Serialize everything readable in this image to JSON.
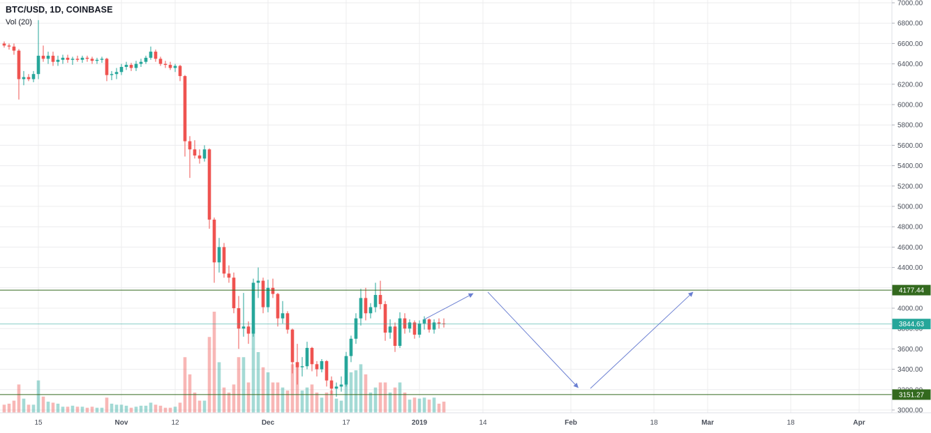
{
  "header": {
    "symbol_title": "BTC/USD, 1D, COINBASE",
    "indicator_label": "Vol (20)"
  },
  "colors": {
    "up": "#26a69a",
    "down": "#ef5350",
    "volume_up": "rgba(38,166,154,0.42)",
    "volume_down": "rgba(239,83,80,0.42)",
    "grid": "#ececee",
    "axis_line": "#dcdfe5",
    "axis_text": "#4a4f5a",
    "axis_tick": "#b0b3bb",
    "level_line": "#33691e",
    "last_price": "#26a69a",
    "arrow": "#6a7fd2",
    "legend_text": "#131722",
    "background": "#ffffff"
  },
  "price_axis": {
    "min": 3000,
    "max": 7000,
    "step": 200,
    "labels": [
      "7000.00",
      "6800.00",
      "6600.00",
      "6400.00",
      "6200.00",
      "6000.00",
      "5800.00",
      "5600.00",
      "5400.00",
      "5200.00",
      "5000.00",
      "4800.00",
      "4600.00",
      "4400.00",
      "4200.00",
      "4000.00",
      "3800.00",
      "3600.00",
      "3400.00",
      "3200.00",
      "3000.00"
    ]
  },
  "time_axis": {
    "labels": [
      {
        "text": "15",
        "day": -78,
        "major": false
      },
      {
        "text": "Nov",
        "day": -61,
        "major": true
      },
      {
        "text": "12",
        "day": -50,
        "major": false
      },
      {
        "text": "Dec",
        "day": -31,
        "major": true
      },
      {
        "text": "17",
        "day": -15,
        "major": false
      },
      {
        "text": "2019",
        "day": 0,
        "major": true
      },
      {
        "text": "14",
        "day": 13,
        "major": false
      },
      {
        "text": "Feb",
        "day": 31,
        "major": true
      },
      {
        "text": "18",
        "day": 48,
        "major": false
      },
      {
        "text": "Mar",
        "day": 59,
        "major": true
      },
      {
        "text": "18",
        "day": 76,
        "major": false
      },
      {
        "text": "Apr",
        "day": 90,
        "major": true
      }
    ]
  },
  "price_lines": {
    "resistance": {
      "label": "4177.44",
      "value": 4177.44
    },
    "support": {
      "label": "3151.27",
      "value": 3151.27
    },
    "last": {
      "label": "3844.63",
      "value": 3844.63
    }
  },
  "drawings": {
    "arrows": [
      {
        "from_day": 1,
        "from_price": 3890,
        "to_day": 11,
        "to_price": 4144
      },
      {
        "from_day": 14,
        "from_price": 4158,
        "to_day": 32.5,
        "to_price": 3219
      },
      {
        "from_day": 35,
        "from_price": 3212,
        "to_day": 56,
        "to_price": 4158
      }
    ]
  },
  "chart_data": {
    "type": "candlestick",
    "symbol": "BTC/USD",
    "interval": "1D",
    "exchange": "COINBASE",
    "price_range": [
      3000,
      7000
    ],
    "levels": [
      4177.44,
      3151.27
    ],
    "last_price": 3844.63,
    "volume_unit": "relative-0-100",
    "candle_fields": [
      "date",
      "open",
      "high",
      "low",
      "close",
      "volume_rel"
    ],
    "candles": [
      [
        "2018-10-08",
        6600,
        6620,
        6560,
        6580,
        8
      ],
      [
        "2018-10-09",
        6580,
        6600,
        6540,
        6570,
        9
      ],
      [
        "2018-10-10",
        6570,
        6600,
        6490,
        6530,
        12
      ],
      [
        "2018-10-11",
        6530,
        6545,
        6050,
        6250,
        28
      ],
      [
        "2018-10-12",
        6250,
        6330,
        6190,
        6270,
        14
      ],
      [
        "2018-10-13",
        6270,
        6300,
        6230,
        6250,
        8
      ],
      [
        "2018-10-14",
        6250,
        6330,
        6220,
        6300,
        8
      ],
      [
        "2018-10-15",
        6300,
        6830,
        6250,
        6480,
        32
      ],
      [
        "2018-10-16",
        6480,
        6580,
        6420,
        6450,
        16
      ],
      [
        "2018-10-17",
        6450,
        6520,
        6400,
        6480,
        11
      ],
      [
        "2018-10-18",
        6480,
        6520,
        6380,
        6420,
        10
      ],
      [
        "2018-10-19",
        6420,
        6480,
        6380,
        6440,
        9
      ],
      [
        "2018-10-20",
        6440,
        6490,
        6400,
        6460,
        6
      ],
      [
        "2018-10-21",
        6460,
        6490,
        6410,
        6440,
        6
      ],
      [
        "2018-10-22",
        6440,
        6470,
        6390,
        6450,
        7
      ],
      [
        "2018-10-23",
        6450,
        6480,
        6420,
        6440,
        6
      ],
      [
        "2018-10-24",
        6440,
        6480,
        6410,
        6460,
        6
      ],
      [
        "2018-10-25",
        6460,
        6480,
        6420,
        6450,
        5
      ],
      [
        "2018-10-26",
        6450,
        6470,
        6400,
        6430,
        6
      ],
      [
        "2018-10-27",
        6430,
        6460,
        6400,
        6440,
        5
      ],
      [
        "2018-10-28",
        6440,
        6470,
        6410,
        6450,
        5
      ],
      [
        "2018-10-29",
        6450,
        6460,
        6230,
        6290,
        15
      ],
      [
        "2018-10-30",
        6290,
        6330,
        6240,
        6300,
        9
      ],
      [
        "2018-10-31",
        6300,
        6360,
        6250,
        6320,
        8
      ],
      [
        "2018-11-01",
        6320,
        6400,
        6290,
        6370,
        8
      ],
      [
        "2018-11-02",
        6370,
        6420,
        6340,
        6390,
        7
      ],
      [
        "2018-11-03",
        6390,
        6410,
        6330,
        6360,
        5
      ],
      [
        "2018-11-04",
        6360,
        6430,
        6330,
        6400,
        6
      ],
      [
        "2018-11-05",
        6400,
        6450,
        6370,
        6420,
        7
      ],
      [
        "2018-11-06",
        6420,
        6480,
        6400,
        6460,
        7
      ],
      [
        "2018-11-07",
        6460,
        6570,
        6440,
        6520,
        10
      ],
      [
        "2018-11-08",
        6520,
        6540,
        6420,
        6450,
        8
      ],
      [
        "2018-11-09",
        6450,
        6470,
        6380,
        6400,
        7
      ],
      [
        "2018-11-10",
        6400,
        6430,
        6360,
        6390,
        5
      ],
      [
        "2018-11-11",
        6390,
        6420,
        6340,
        6360,
        5
      ],
      [
        "2018-11-12",
        6360,
        6400,
        6320,
        6380,
        6
      ],
      [
        "2018-11-13",
        6380,
        6390,
        6230,
        6280,
        10
      ],
      [
        "2018-11-14",
        6280,
        6290,
        5490,
        5640,
        55
      ],
      [
        "2018-11-15",
        5640,
        5690,
        5280,
        5560,
        38
      ],
      [
        "2018-11-16",
        5560,
        5650,
        5470,
        5500,
        20
      ],
      [
        "2018-11-17",
        5500,
        5560,
        5420,
        5470,
        12
      ],
      [
        "2018-11-18",
        5470,
        5600,
        5440,
        5560,
        12
      ],
      [
        "2018-11-19",
        5560,
        5570,
        4780,
        4870,
        75
      ],
      [
        "2018-11-20",
        4870,
        4890,
        4250,
        4450,
        100
      ],
      [
        "2018-11-21",
        4450,
        4690,
        4350,
        4600,
        50
      ],
      [
        "2018-11-22",
        4600,
        4640,
        4300,
        4340,
        25
      ],
      [
        "2018-11-23",
        4340,
        4420,
        4250,
        4300,
        20
      ],
      [
        "2018-11-24",
        4300,
        4350,
        3950,
        4000,
        28
      ],
      [
        "2018-11-25",
        4000,
        4120,
        3600,
        3800,
        55
      ],
      [
        "2018-11-26",
        3800,
        4150,
        3720,
        3820,
        55
      ],
      [
        "2018-11-27",
        3820,
        3870,
        3650,
        3750,
        30
      ],
      [
        "2018-11-28",
        3750,
        4290,
        3720,
        4250,
        85
      ],
      [
        "2018-11-29",
        4250,
        4400,
        4100,
        4270,
        60
      ],
      [
        "2018-11-30",
        4270,
        4300,
        3950,
        4010,
        45
      ],
      [
        "2018-12-01",
        4010,
        4280,
        3960,
        4200,
        40
      ],
      [
        "2018-12-02",
        4200,
        4290,
        4100,
        4140,
        30
      ],
      [
        "2018-12-03",
        4140,
        4150,
        3820,
        3900,
        30
      ],
      [
        "2018-12-04",
        3900,
        4070,
        3850,
        3950,
        25
      ],
      [
        "2018-12-05",
        3950,
        3970,
        3750,
        3790,
        22
      ],
      [
        "2018-12-06",
        3790,
        3800,
        3360,
        3470,
        48
      ],
      [
        "2018-12-07",
        3470,
        3650,
        3250,
        3420,
        50
      ],
      [
        "2018-12-08",
        3420,
        3520,
        3330,
        3430,
        22
      ],
      [
        "2018-12-09",
        3430,
        3670,
        3400,
        3610,
        25
      ],
      [
        "2018-12-10",
        3610,
        3620,
        3380,
        3450,
        28
      ],
      [
        "2018-12-11",
        3450,
        3480,
        3330,
        3400,
        20
      ],
      [
        "2018-12-12",
        3400,
        3500,
        3370,
        3480,
        15
      ],
      [
        "2018-12-13",
        3480,
        3490,
        3230,
        3290,
        20
      ],
      [
        "2018-12-14",
        3290,
        3330,
        3150,
        3210,
        22
      ],
      [
        "2018-12-15",
        3210,
        3270,
        3130,
        3230,
        14
      ],
      [
        "2018-12-16",
        3230,
        3330,
        3180,
        3250,
        12
      ],
      [
        "2018-12-17",
        3250,
        3570,
        3230,
        3530,
        55
      ],
      [
        "2018-12-18",
        3530,
        3730,
        3470,
        3700,
        40
      ],
      [
        "2018-12-19",
        3700,
        3950,
        3650,
        3900,
        42
      ],
      [
        "2018-12-20",
        3900,
        4190,
        3830,
        4100,
        48
      ],
      [
        "2018-12-21",
        4100,
        4200,
        3880,
        3950,
        38
      ],
      [
        "2018-12-22",
        3950,
        4050,
        3900,
        4010,
        20
      ],
      [
        "2018-12-23",
        4010,
        4250,
        3960,
        4130,
        25
      ],
      [
        "2018-12-24",
        4130,
        4270,
        3990,
        4040,
        30
      ],
      [
        "2018-12-25",
        4040,
        4070,
        3680,
        3760,
        30
      ],
      [
        "2018-12-26",
        3760,
        3890,
        3700,
        3820,
        20
      ],
      [
        "2018-12-27",
        3820,
        3860,
        3570,
        3630,
        25
      ],
      [
        "2018-12-28",
        3630,
        3960,
        3610,
        3900,
        30
      ],
      [
        "2018-12-29",
        3900,
        3950,
        3750,
        3800,
        20
      ],
      [
        "2018-12-30",
        3800,
        3890,
        3760,
        3860,
        13
      ],
      [
        "2018-12-31",
        3860,
        3880,
        3700,
        3740,
        15
      ],
      [
        "2019-01-01",
        3740,
        3880,
        3710,
        3850,
        14
      ],
      [
        "2019-01-02",
        3850,
        3920,
        3790,
        3890,
        15
      ],
      [
        "2019-01-03",
        3890,
        3900,
        3760,
        3790,
        13
      ],
      [
        "2019-01-04",
        3790,
        3890,
        3750,
        3860,
        15
      ],
      [
        "2019-01-05",
        3860,
        3900,
        3800,
        3850,
        9
      ],
      [
        "2019-01-06",
        3850,
        3900,
        3810,
        3844.63,
        11
      ]
    ]
  }
}
